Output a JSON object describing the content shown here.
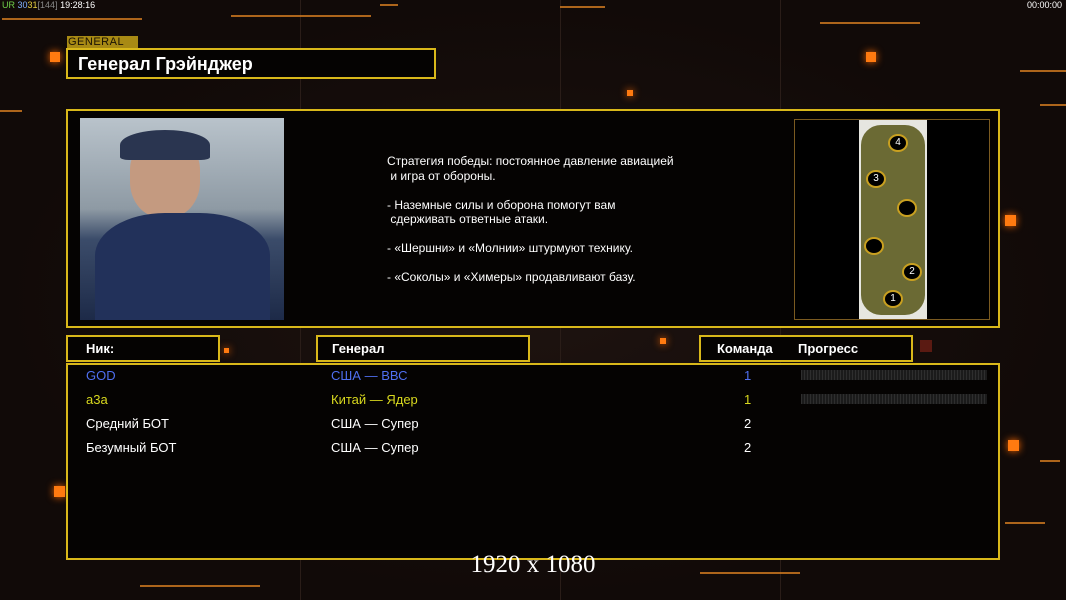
{
  "status": {
    "ur": "UR",
    "fps1": "30",
    "fps2": "31",
    "bracket": "[144]",
    "clock": "19:28:16",
    "timer": "00:00:00"
  },
  "header": {
    "tag": "GENERAL",
    "title": "Генерал Грэйнджер"
  },
  "general": {
    "description": "Стратегия победы: постоянное давление авиацией\n и игра от обороны.\n\n- Наземные силы и оборона помогут вам\n сдерживать ответные атаки.\n\n- «Шершни» и «Молнии» штурмуют технику.\n\n- «Соколы» и «Химеры» продавливают базу."
  },
  "map": {
    "start_positions": [
      "1",
      "2",
      "3",
      "4"
    ]
  },
  "table": {
    "headers": {
      "nick": "Ник:",
      "general": "Генерал",
      "team": "Команда",
      "progress": "Прогресс"
    },
    "rows": [
      {
        "nick": "GOD",
        "general": "США — ВВС",
        "team": "1",
        "color": "#4f6ff0",
        "progress_shown": true
      },
      {
        "nick": "а3а",
        "general": "Китай — Ядер",
        "team": "1",
        "color": "#d8d81e",
        "progress_shown": true
      },
      {
        "nick": "Средний БОТ",
        "general": "США — Супер",
        "team": "2",
        "color": "#ffffff",
        "progress_shown": false
      },
      {
        "nick": "Безумный БОТ",
        "general": "США — Супер",
        "team": "2",
        "color": "#ffffff",
        "progress_shown": false
      }
    ]
  },
  "footer": {
    "resolution": "1920 x 1080"
  }
}
